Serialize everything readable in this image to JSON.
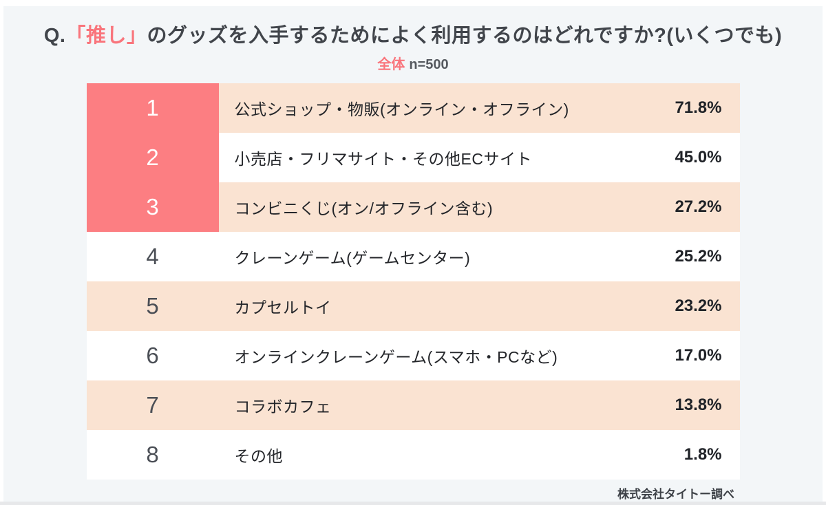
{
  "title": {
    "prefix": "Q.",
    "highlight": "「推し」",
    "rest": "のグッズを入手するためによく利用するのはどれですか?(いくつでも)"
  },
  "subtitle": {
    "group": "全体",
    "sample": "n=500"
  },
  "rows": [
    {
      "rank": "1",
      "label": "公式ショップ・物販(オンライン・オフライン)",
      "value": "71.8%"
    },
    {
      "rank": "2",
      "label": "小売店・フリマサイト・その他ECサイト",
      "value": "45.0%"
    },
    {
      "rank": "3",
      "label": "コンビニくじ(オン/オフライン含む)",
      "value": "27.2%"
    },
    {
      "rank": "4",
      "label": "クレーンゲーム(ゲームセンター)",
      "value": "25.2%"
    },
    {
      "rank": "5",
      "label": "カプセルトイ",
      "value": "23.2%"
    },
    {
      "rank": "6",
      "label": "オンラインクレーンゲーム(スマホ・PCなど)",
      "value": "17.0%"
    },
    {
      "rank": "7",
      "label": "コラボカフェ",
      "value": "13.8%"
    },
    {
      "rank": "8",
      "label": "その他",
      "value": "1.8%"
    }
  ],
  "footer": {
    "source": "株式会社タイトー調べ"
  },
  "colors": {
    "accent_pink_block": "#FC7E82",
    "accent_pink_text": "#F9757C",
    "row_peach": "#FAE3D2",
    "row_white": "#FFFFFF",
    "canvas_background": "#F3F6F8",
    "title_dark": "#41454B"
  },
  "chart_data": {
    "type": "table",
    "title": "Q.「推し」のグッズを入手するためによく利用するのはどれですか?(いくつでも)",
    "group": "全体",
    "n": 500,
    "unit": "%",
    "categories": [
      "公式ショップ・物販(オンライン・オフライン)",
      "小売店・フリマサイト・その他ECサイト",
      "コンビニくじ(オン/オフライン含む)",
      "クレーンゲーム(ゲームセンター)",
      "カプセルトイ",
      "オンラインクレーンゲーム(スマホ・PCなど)",
      "コラボカフェ",
      "その他"
    ],
    "values": [
      71.8,
      45.0,
      27.2,
      25.2,
      23.2,
      17.0,
      13.8,
      1.8
    ],
    "ranks": [
      1,
      2,
      3,
      4,
      5,
      6,
      7,
      8
    ],
    "highlighted_ranks": [
      1,
      2,
      3
    ],
    "source": "株式会社タイトー調べ"
  }
}
